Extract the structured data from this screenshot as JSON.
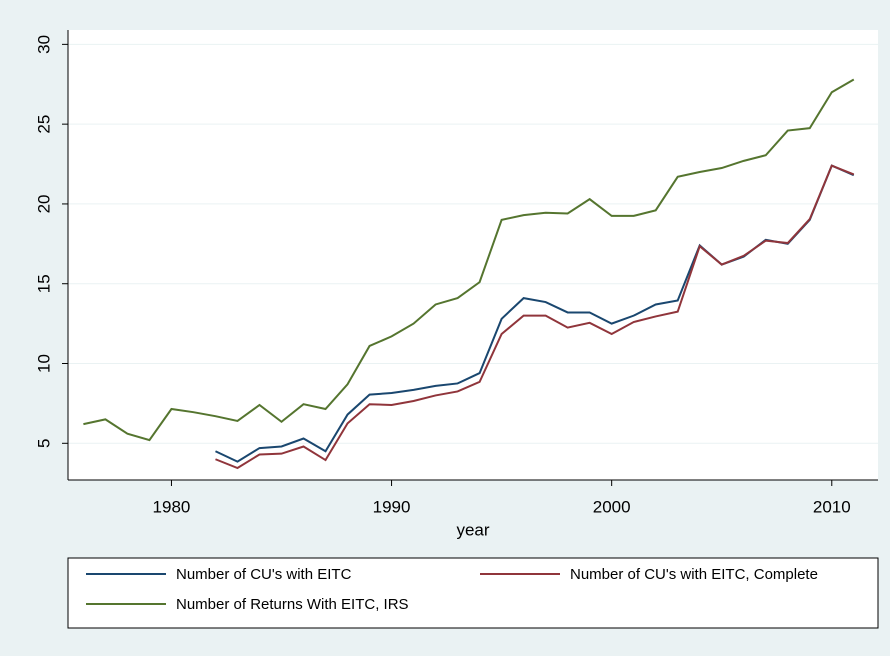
{
  "chart_data": {
    "type": "line",
    "x_label": "year",
    "x": [
      1976,
      1977,
      1978,
      1979,
      1980,
      1981,
      1982,
      1983,
      1984,
      1985,
      1986,
      1987,
      1988,
      1989,
      1990,
      1991,
      1992,
      1993,
      1994,
      1995,
      1996,
      1997,
      1998,
      1999,
      2000,
      2001,
      2002,
      2003,
      2004,
      2005,
      2006,
      2007,
      2008,
      2009,
      2010,
      2011
    ],
    "series": [
      {
        "name": "Number of CU's with EITC",
        "color": "#1a476f",
        "values": [
          null,
          null,
          null,
          null,
          null,
          null,
          4.5,
          3.85,
          4.7,
          4.8,
          5.3,
          4.5,
          6.8,
          8.05,
          8.15,
          8.35,
          8.6,
          8.75,
          9.4,
          12.8,
          14.1,
          13.85,
          13.2,
          13.2,
          12.5,
          13.0,
          13.7,
          13.95,
          17.4,
          16.2,
          16.7,
          17.75,
          17.5,
          19.0,
          22.4,
          21.8
        ]
      },
      {
        "name": "Number of CU's with EITC, Complete",
        "color": "#90353b",
        "values": [
          null,
          null,
          null,
          null,
          null,
          null,
          4.0,
          3.45,
          4.3,
          4.35,
          4.8,
          3.95,
          6.25,
          7.45,
          7.4,
          7.65,
          8.0,
          8.25,
          8.85,
          11.85,
          13.0,
          13.0,
          12.25,
          12.55,
          11.85,
          12.6,
          12.95,
          13.25,
          17.35,
          16.2,
          16.75,
          17.7,
          17.55,
          19.05,
          22.4,
          21.85
        ]
      },
      {
        "name": "Number of Returns With EITC, IRS",
        "color": "#55752f",
        "values": [
          6.2,
          6.5,
          5.6,
          5.2,
          7.15,
          6.95,
          6.7,
          6.4,
          7.4,
          6.35,
          7.45,
          7.15,
          8.7,
          11.1,
          11.7,
          12.5,
          13.7,
          14.1,
          15.1,
          19.0,
          19.3,
          19.45,
          19.4,
          20.3,
          19.25,
          19.25,
          19.6,
          21.7,
          22.0,
          22.25,
          22.7,
          23.05,
          24.6,
          24.75,
          27.0,
          27.8
        ]
      }
    ],
    "xlim": [
      1975.3,
      2012.1
    ],
    "xticks": [
      1980,
      1990,
      2000,
      2010
    ],
    "ylim": [
      2.7,
      30.9
    ],
    "yticks": [
      5,
      10,
      15,
      20,
      25,
      30
    ],
    "grid": true
  }
}
